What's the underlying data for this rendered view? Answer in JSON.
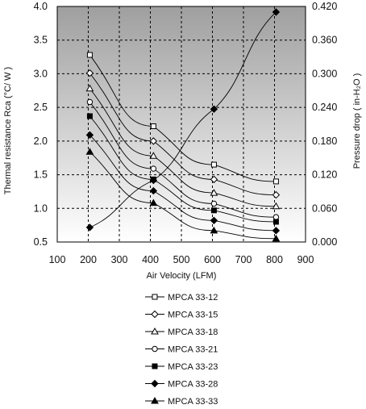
{
  "chart_data": {
    "type": "line",
    "title": "",
    "xlabel": "Air Velocity (LFM)",
    "ylabel": "Thermal resistance  Rca (°C/ W )",
    "y2label": "Pressure drop  ( in-H₂O )",
    "xlim": [
      100,
      900
    ],
    "xticks": [
      100,
      200,
      300,
      400,
      500,
      600,
      700,
      800,
      900
    ],
    "ylim": [
      0.5,
      4.0
    ],
    "yticks": [
      "0.5",
      "1.0",
      "1.5",
      "2.0",
      "2.5",
      "3.0",
      "3.5",
      "4.0"
    ],
    "y2lim": [
      0.0,
      0.42
    ],
    "y2ticks": [
      "0.000",
      "0.060",
      "0.120",
      "0.180",
      "0.240",
      "0.300",
      "0.360",
      "0.420"
    ],
    "grid": "dashed",
    "background": "gradient-grey",
    "legend_placement": "bottom",
    "series": [
      {
        "name": "MPCA 33-12",
        "marker": "square-open",
        "axis": "left",
        "x": [
          205,
          410,
          605,
          805
        ],
        "values": [
          3.28,
          2.22,
          1.65,
          1.4
        ]
      },
      {
        "name": "MPCA 33-15",
        "marker": "diamond-open",
        "axis": "left",
        "x": [
          205,
          410,
          605,
          805
        ],
        "values": [
          3.01,
          2.0,
          1.43,
          1.2
        ]
      },
      {
        "name": "MPCA 33-18",
        "marker": "triangle-open",
        "axis": "left",
        "x": [
          205,
          410,
          605,
          805
        ],
        "values": [
          2.78,
          1.78,
          1.23,
          1.03
        ]
      },
      {
        "name": "MPCA 33-21",
        "marker": "circle-open",
        "axis": "left",
        "x": [
          205,
          410,
          605,
          805
        ],
        "values": [
          2.58,
          1.59,
          1.07,
          0.87
        ]
      },
      {
        "name": "MPCA 33-23",
        "marker": "square-filled",
        "axis": "left",
        "x": [
          205,
          410,
          605,
          805
        ],
        "values": [
          2.37,
          1.43,
          0.97,
          0.8
        ]
      },
      {
        "name": "MPCA 33-28",
        "marker": "diamond-filled",
        "axis": "left",
        "x": [
          205,
          410,
          605,
          805
        ],
        "values": [
          2.09,
          1.26,
          0.82,
          0.67
        ]
      },
      {
        "name": "MPCA 33-33",
        "marker": "triangle-filled",
        "axis": "left",
        "x": [
          205,
          410,
          605,
          805
        ],
        "values": [
          1.84,
          1.08,
          0.67,
          0.55
        ]
      },
      {
        "name": "",
        "marker": "diamond-filled",
        "axis": "right",
        "legend": false,
        "x": [
          205,
          410,
          605,
          805
        ],
        "values": [
          0.026,
          0.11,
          0.237,
          0.41
        ]
      }
    ]
  }
}
